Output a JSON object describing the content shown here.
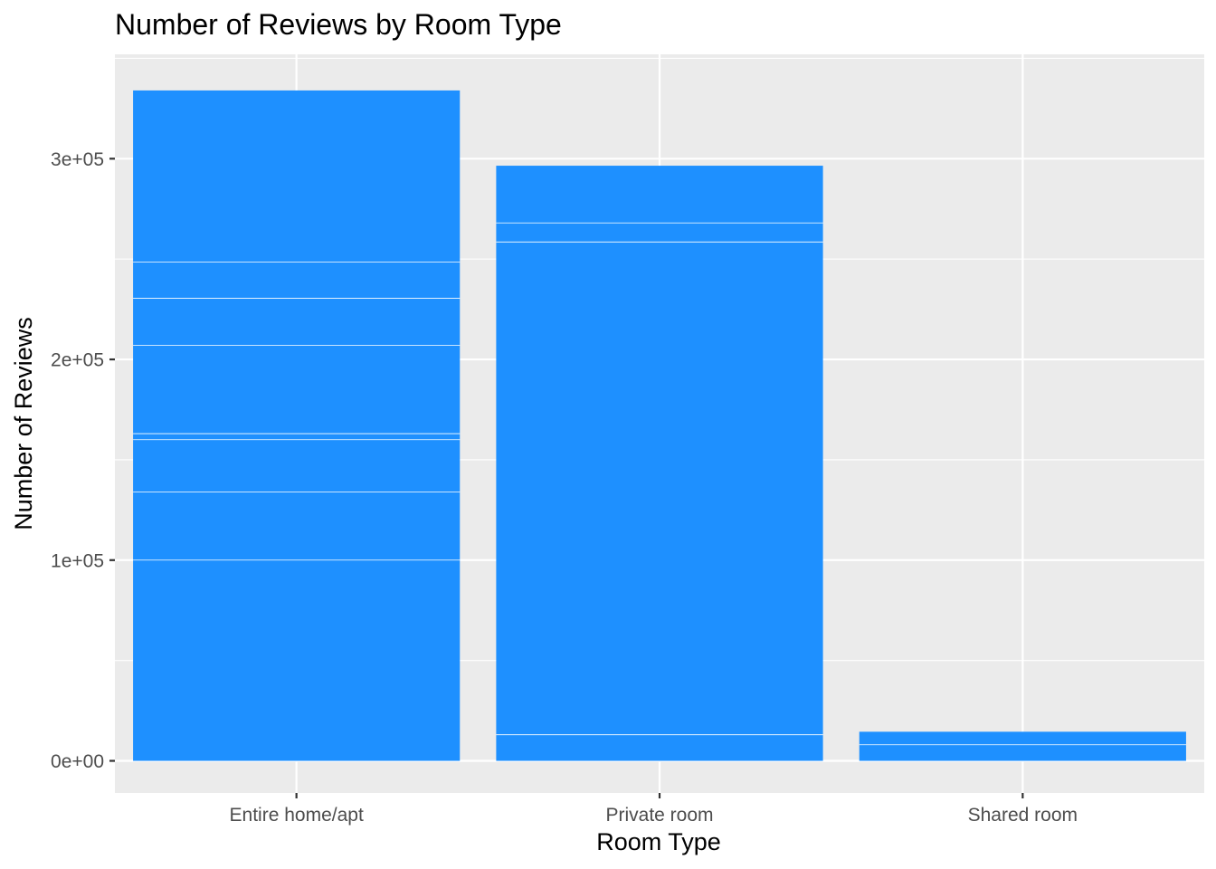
{
  "chart_data": {
    "type": "bar",
    "stacked": true,
    "title": "Number of Reviews by Room Type",
    "xlabel": "Room Type",
    "ylabel": "Number of Reviews",
    "categories": [
      "Entire home/apt",
      "Private room",
      "Shared room"
    ],
    "stack_boundaries": [
      [
        0,
        100000,
        134000,
        160000,
        163000,
        207000,
        230500,
        248500,
        334000
      ],
      [
        0,
        13000,
        258500,
        268000,
        296500
      ],
      [
        0,
        8000,
        14500
      ]
    ],
    "totals": [
      334000,
      296500,
      14500
    ],
    "ylim": [
      -16000,
      352000
    ],
    "yticks": [
      0,
      100000,
      200000,
      300000
    ],
    "ytick_labels": [
      "0e+00",
      "1e+05",
      "2e+05",
      "3e+05"
    ],
    "grid": true,
    "bar_color": "#1E90FF",
    "panel_background": "#EBEBEB",
    "gridline_color": "#FFFFFF",
    "legend": "none"
  }
}
